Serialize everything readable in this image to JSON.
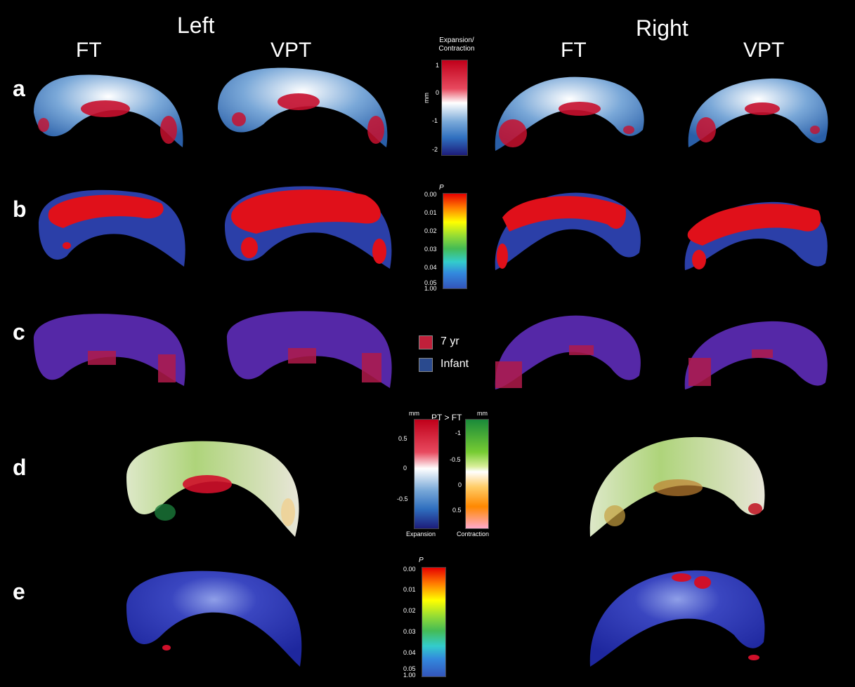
{
  "headers": {
    "left": "Left",
    "right": "Right"
  },
  "columns": [
    "FT",
    "VPT",
    "FT",
    "VPT"
  ],
  "rows": [
    "a",
    "b",
    "c",
    "d",
    "e"
  ],
  "colorbar_a": {
    "title": "Expansion/\nContraction",
    "unit": "mm",
    "ticks": [
      "1",
      "0",
      "-1",
      "-2"
    ],
    "colors": [
      "#c0001a",
      "#ffffff",
      "#2f6fbf",
      "#1d1c7a"
    ]
  },
  "colorbar_p": {
    "title": "P",
    "ticks": [
      "0.00",
      "0.01",
      "0.02",
      "0.03",
      "0.04",
      "0.05",
      "1.00"
    ],
    "colors": [
      "#e60000",
      "#ffcc00",
      "#ffff00",
      "#55bb33",
      "#33aadd",
      "#3355bb"
    ]
  },
  "legend_c": [
    {
      "label": "7 yr",
      "color": "#c0203a"
    },
    {
      "label": "Infant",
      "color": "#2a4a8e"
    }
  ],
  "colorbar_d_left": {
    "unit": "mm",
    "label": "Expansion",
    "ticks": [
      "0.5",
      "0",
      "-0.5"
    ]
  },
  "colorbar_d_right": {
    "unit": "mm",
    "label": "Contraction",
    "ticks": [
      "-1",
      "-0.5",
      "0",
      "0.5"
    ]
  },
  "colorbar_d_title": "PT > FT",
  "colorbar_e": {
    "title": "P",
    "ticks": [
      "0.00",
      "0.01",
      "0.02",
      "0.03",
      "0.04",
      "0.05",
      "1.00"
    ]
  }
}
